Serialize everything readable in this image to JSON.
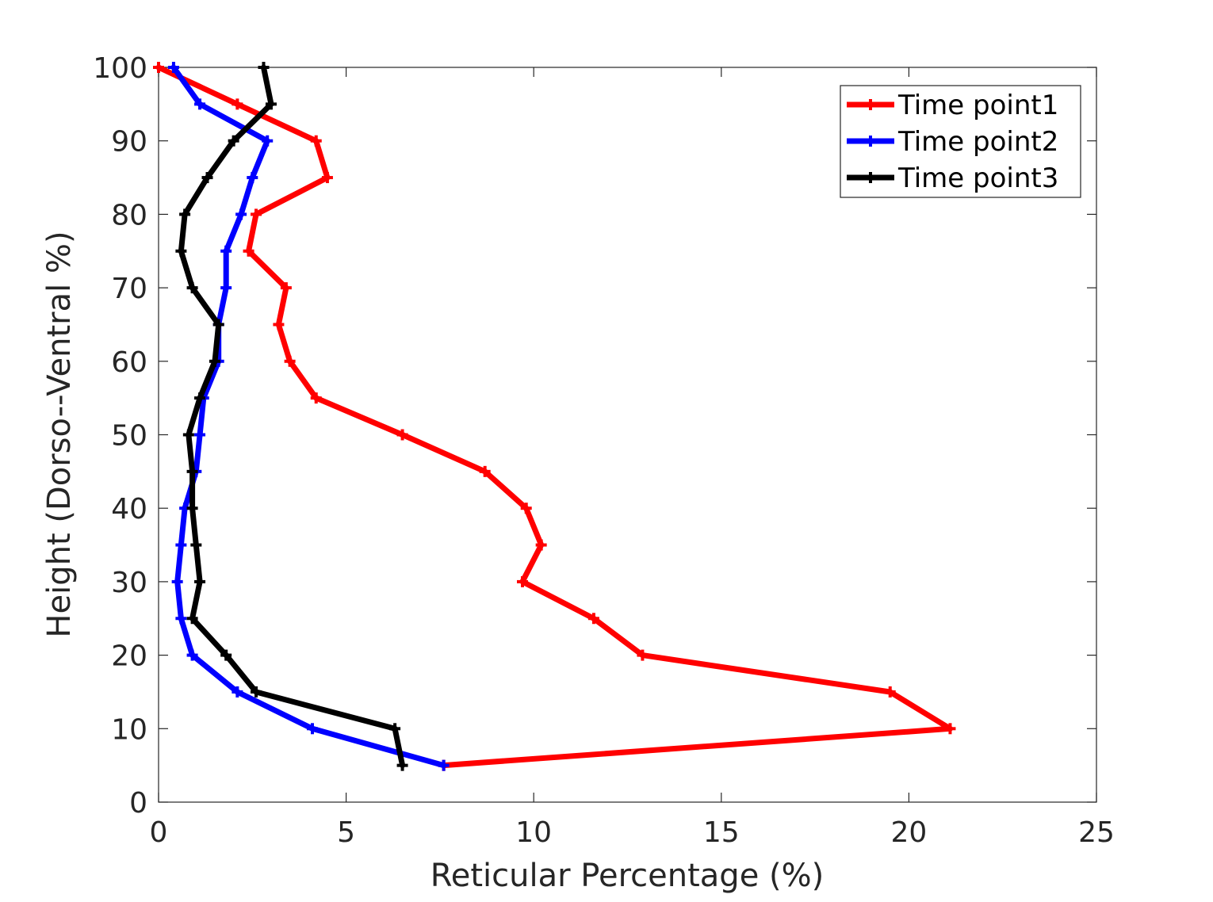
{
  "chart_data": {
    "type": "line",
    "xlabel": "Reticular Percentage (%)",
    "ylabel": "Height (Dorso--Ventral %)",
    "xlim": [
      0,
      25
    ],
    "ylim": [
      0,
      100
    ],
    "xticks": [
      0,
      5,
      10,
      15,
      20,
      25
    ],
    "yticks": [
      0,
      10,
      20,
      30,
      40,
      50,
      60,
      70,
      80,
      90,
      100
    ],
    "legend_position": "top-right",
    "grid": false,
    "series": [
      {
        "name": "Time point1",
        "color": "#ff0000",
        "x": [
          7.6,
          21.1,
          19.5,
          12.9,
          11.6,
          9.7,
          10.2,
          9.8,
          8.7,
          6.5,
          4.2,
          3.5,
          3.2,
          3.4,
          2.4,
          2.6,
          4.5,
          4.2,
          2.1,
          0.0
        ],
        "y": [
          5,
          10,
          15,
          20,
          25,
          30,
          35,
          40,
          45,
          50,
          55,
          60,
          65,
          70,
          75,
          80,
          85,
          90,
          95,
          100
        ]
      },
      {
        "name": "Time point2",
        "color": "#0000ff",
        "x": [
          7.6,
          4.1,
          2.1,
          0.9,
          0.6,
          0.5,
          0.6,
          0.7,
          1.0,
          1.1,
          1.2,
          1.6,
          1.6,
          1.8,
          1.8,
          2.2,
          2.5,
          2.9,
          1.1,
          0.4
        ],
        "y": [
          5,
          10,
          15,
          20,
          25,
          30,
          35,
          40,
          45,
          50,
          55,
          60,
          65,
          70,
          75,
          80,
          85,
          90,
          95,
          100
        ]
      },
      {
        "name": "Time point3",
        "color": "#000000",
        "x": [
          6.5,
          6.3,
          2.6,
          1.8,
          0.9,
          1.1,
          1.0,
          0.9,
          0.9,
          0.8,
          1.1,
          1.5,
          1.6,
          0.9,
          0.6,
          0.7,
          1.3,
          2.0,
          3.0,
          2.8
        ],
        "y": [
          5,
          10,
          15,
          20,
          25,
          30,
          35,
          40,
          45,
          50,
          55,
          60,
          65,
          70,
          75,
          80,
          85,
          90,
          95,
          100
        ]
      }
    ]
  }
}
